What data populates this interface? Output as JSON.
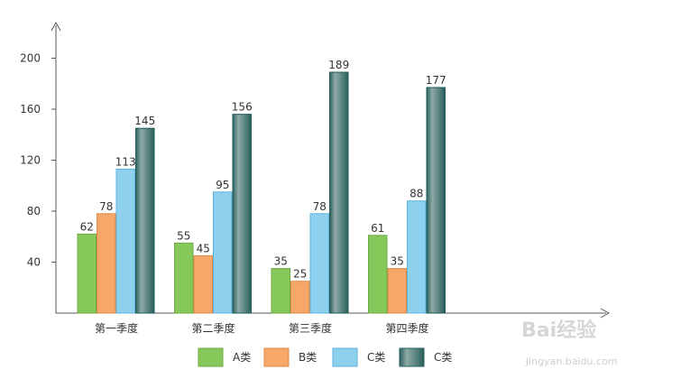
{
  "chart_data": {
    "type": "bar",
    "title": "",
    "xlabel": "",
    "ylabel": "",
    "ylim": [
      0,
      240
    ],
    "yticks": [
      40,
      80,
      120,
      160,
      200
    ],
    "ytick_labels": [
      "40",
      "80",
      "120",
      "160",
      "200"
    ],
    "categories": [
      "第一季度",
      "第二季度",
      "第三季度",
      "第四季度"
    ],
    "series": [
      {
        "name": "A类",
        "values": [
          62,
          55,
          35,
          61
        ],
        "color": "#86c95a",
        "stroke": "#6aaa45",
        "style": "flat"
      },
      {
        "name": "B类",
        "values": [
          78,
          45,
          25,
          35
        ],
        "color": "#f5a86a",
        "stroke": "#e08a45",
        "style": "flat"
      },
      {
        "name": "C类",
        "values": [
          113,
          95,
          78,
          88
        ],
        "color": "#8dd1ef",
        "stroke": "#5eb3dc",
        "style": "flat"
      },
      {
        "name": "C类",
        "values": [
          145,
          156,
          189,
          177
        ],
        "color": "#4e7f7c",
        "stroke": "#1f5c5a",
        "style": "cylinder"
      }
    ],
    "data_labels": true,
    "grid": false,
    "legend_position": "bottom"
  },
  "watermark": {
    "logo_text": "Bai经验",
    "url_text": "jingyan.baidu.com"
  }
}
